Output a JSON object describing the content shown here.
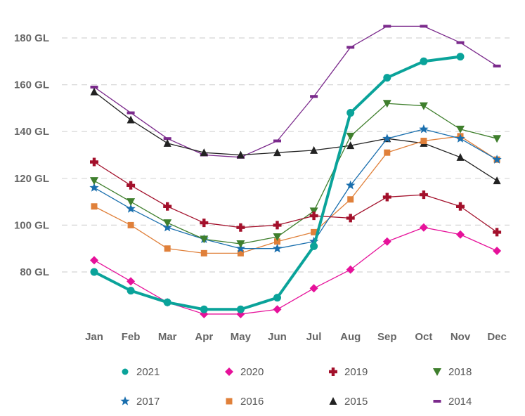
{
  "chart_data": {
    "type": "line",
    "title": "",
    "xlabel": "",
    "ylabel": "",
    "categories": [
      "Jan",
      "Feb",
      "Mar",
      "Apr",
      "May",
      "Jun",
      "Jul",
      "Aug",
      "Sep",
      "Oct",
      "Nov",
      "Dec"
    ],
    "ylim": [
      56,
      185
    ],
    "yticks": [
      80,
      100,
      120,
      140,
      160,
      180
    ],
    "ytick_labels": [
      "80 GL",
      "100 GL",
      "120 GL",
      "140 GL",
      "160 GL",
      "180 GL"
    ],
    "grid": "horizontal dashed",
    "legend_position": "bottom",
    "series": [
      {
        "name": "2021",
        "color": "#0aa39a",
        "marker": "circle",
        "emphasis": true,
        "values": [
          80,
          72,
          67,
          64,
          64,
          69,
          91,
          148,
          163,
          170,
          172,
          null
        ]
      },
      {
        "name": "2020",
        "color": "#e6119a",
        "marker": "diamond",
        "values": [
          85,
          76,
          67,
          62,
          62,
          64,
          73,
          81,
          93,
          99,
          96,
          89
        ]
      },
      {
        "name": "2019",
        "color": "#a3102b",
        "marker": "plus",
        "values": [
          127,
          117,
          108,
          101,
          99,
          100,
          104,
          103,
          112,
          113,
          108,
          97
        ]
      },
      {
        "name": "2018",
        "color": "#3f7f2d",
        "marker": "triangle-down",
        "values": [
          119,
          110,
          101,
          94,
          92,
          95,
          106,
          138,
          152,
          151,
          141,
          137
        ]
      },
      {
        "name": "2017",
        "color": "#1a6fae",
        "marker": "star",
        "values": [
          116,
          107,
          99,
          94,
          90,
          90,
          93,
          117,
          137,
          141,
          137,
          128
        ]
      },
      {
        "name": "2016",
        "color": "#e0803a",
        "marker": "square",
        "values": [
          108,
          100,
          90,
          88,
          88,
          93,
          97,
          111,
          131,
          136,
          138,
          128
        ]
      },
      {
        "name": "2015",
        "color": "#222222",
        "marker": "triangle-up",
        "values": [
          157,
          145,
          135,
          131,
          130,
          131,
          132,
          134,
          137,
          135,
          129,
          119
        ]
      },
      {
        "name": "2014",
        "color": "#7b2a8c",
        "marker": "dash",
        "values": [
          159,
          148,
          137,
          130,
          129,
          136,
          155,
          176,
          185,
          185,
          178,
          168
        ]
      }
    ]
  }
}
